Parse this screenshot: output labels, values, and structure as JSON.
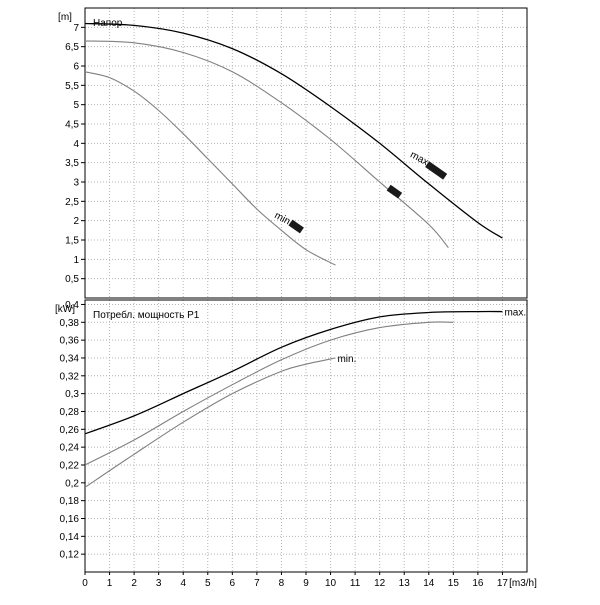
{
  "chart_data": [
    {
      "type": "line",
      "title": "Напор",
      "unit_label": "[m]",
      "ylim": [
        0,
        7.5
      ],
      "xlim": [
        0,
        18
      ],
      "y_ticks": [
        "0,5",
        "1",
        "1,5",
        "2",
        "2,5",
        "3",
        "3,5",
        "4",
        "4,5",
        "5",
        "5,5",
        "6",
        "6,5",
        "7"
      ],
      "grid": true,
      "series": [
        {
          "name": "max",
          "color": "#000000",
          "x": [
            0,
            2,
            4,
            6,
            8,
            10,
            12,
            14,
            16,
            17
          ],
          "y": [
            7.1,
            7.05,
            6.85,
            6.45,
            5.8,
            4.95,
            4.0,
            2.95,
            1.95,
            1.55
          ]
        },
        {
          "name": "",
          "color": "#808080",
          "x": [
            0,
            2,
            4,
            6,
            8,
            10,
            12,
            14,
            14.8
          ],
          "y": [
            6.65,
            6.6,
            6.35,
            5.85,
            5.05,
            4.1,
            3.0,
            1.9,
            1.3
          ]
        },
        {
          "name": "min",
          "color": "#808080",
          "x": [
            0,
            1,
            2,
            3,
            4,
            5,
            6,
            7,
            8,
            9,
            10.2
          ],
          "y": [
            5.85,
            5.7,
            5.35,
            4.85,
            4.25,
            3.6,
            2.95,
            2.3,
            1.75,
            1.25,
            0.85
          ]
        }
      ],
      "markers": [
        {
          "x": 14.3,
          "y": 3.3
        },
        {
          "x": 12.6,
          "y": 2.75
        },
        {
          "x": 8.6,
          "y": 1.85
        }
      ]
    },
    {
      "type": "line",
      "title": "Потребл. мощность P1",
      "unit_label": "[kW]",
      "ylim": [
        0.1,
        0.405
      ],
      "xlim": [
        0,
        18
      ],
      "y_ticks": [
        "0,12",
        "0,14",
        "0,16",
        "0,18",
        "0,2",
        "0,22",
        "0,24",
        "0,26",
        "0,28",
        "0,3",
        "0,32",
        "0,34",
        "0,36",
        "0,38",
        "0,4"
      ],
      "x_ticks": [
        "0",
        "1",
        "2",
        "3",
        "4",
        "5",
        "6",
        "7",
        "8",
        "9",
        "10",
        "11",
        "12",
        "13",
        "14",
        "15",
        "16",
        "17"
      ],
      "xlabel": "[m3/h]",
      "grid": true,
      "series": [
        {
          "name": "max.",
          "color": "#000000",
          "x": [
            0,
            2,
            4,
            6,
            8,
            10,
            12,
            14,
            16,
            17
          ],
          "y": [
            0.255,
            0.275,
            0.3,
            0.325,
            0.352,
            0.372,
            0.386,
            0.391,
            0.392,
            0.392
          ]
        },
        {
          "name": "",
          "color": "#808080",
          "x": [
            0,
            2,
            4,
            6,
            8,
            10,
            12,
            14,
            15
          ],
          "y": [
            0.22,
            0.248,
            0.28,
            0.31,
            0.338,
            0.36,
            0.374,
            0.38,
            0.38
          ]
        },
        {
          "name": "min.",
          "color": "#808080",
          "x": [
            0,
            2,
            4,
            6,
            8,
            9,
            10.2
          ],
          "y": [
            0.195,
            0.232,
            0.268,
            0.3,
            0.325,
            0.333,
            0.34
          ]
        }
      ]
    }
  ]
}
